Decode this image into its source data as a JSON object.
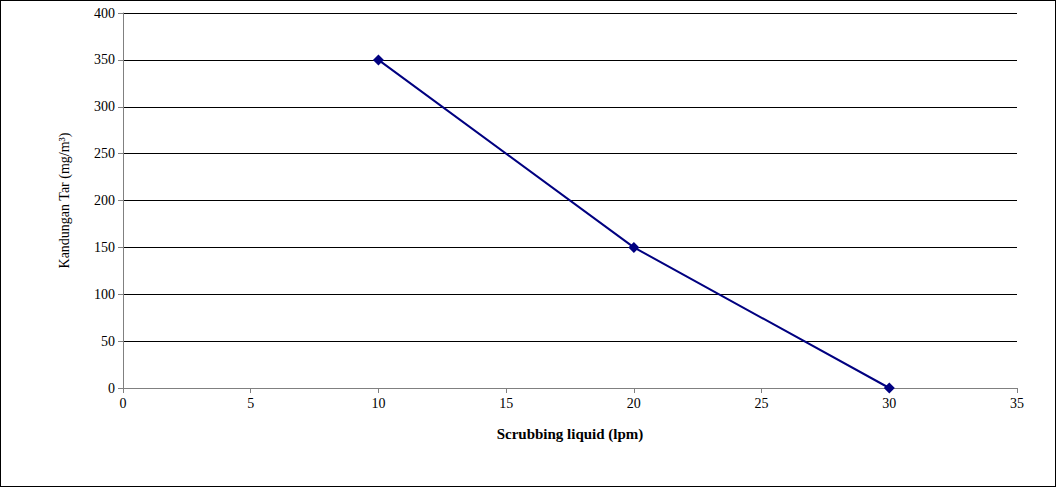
{
  "chart_data": {
    "type": "line",
    "x_label": "Scrubbing liquid (lpm)",
    "y_label": "Kandungan Tar (mg/m³)",
    "x": [
      10,
      20,
      30
    ],
    "values": [
      350,
      150,
      0
    ],
    "color": "#000080",
    "marker": "diamond",
    "xlim": [
      0,
      35
    ],
    "xticks": [
      0,
      5,
      10,
      15,
      20,
      25,
      30,
      35
    ],
    "ylim": [
      0,
      400
    ],
    "yticks": [
      0,
      50,
      100,
      150,
      200,
      250,
      300,
      350,
      400
    ],
    "grid": true
  }
}
